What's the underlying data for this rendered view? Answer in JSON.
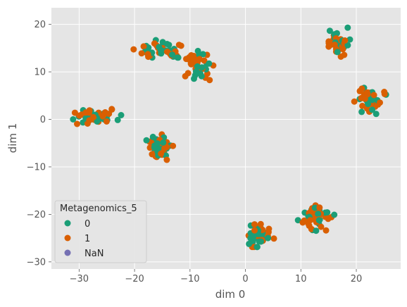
{
  "chart_data": {
    "type": "scatter",
    "title": "",
    "xlabel": "dim 0",
    "ylabel": "dim 1",
    "xlim": [
      -35,
      28
    ],
    "ylim": [
      -31.5,
      23.5
    ],
    "xticks": [
      -30,
      -20,
      -10,
      0,
      10,
      20
    ],
    "yticks": [
      -30,
      -20,
      -10,
      0,
      10,
      20
    ],
    "xtick_labels": [
      "−30",
      "−20",
      "−10",
      "0",
      "10",
      "20"
    ],
    "ytick_labels": [
      "−30",
      "−20",
      "−10",
      "0",
      "10",
      "20"
    ],
    "grid": true,
    "background": "#e5e5e5",
    "legend": {
      "title": "Metagenomics_5",
      "placement": "lower-left",
      "entries": [
        {
          "label": "0",
          "color": "#1b9e77"
        },
        {
          "label": "1",
          "color": "#d95f02"
        },
        {
          "label": "NaN",
          "color": "#7570b3"
        }
      ]
    },
    "clusters": [
      {
        "center": [
          -27,
          0.5
        ],
        "spread": [
          4.5,
          2.0
        ],
        "n": 48
      },
      {
        "center": [
          -16,
          14.5
        ],
        "spread": [
          4.0,
          2.0
        ],
        "n": 45
      },
      {
        "center": [
          -8.5,
          12
        ],
        "spread": [
          2.5,
          3.5
        ],
        "n": 40
      },
      {
        "center": [
          -15.5,
          -6
        ],
        "spread": [
          2.2,
          2.6
        ],
        "n": 52
      },
      {
        "center": [
          17,
          16
        ],
        "spread": [
          1.8,
          3.0
        ],
        "n": 38
      },
      {
        "center": [
          22.5,
          4
        ],
        "spread": [
          2.6,
          2.6
        ],
        "n": 48
      },
      {
        "center": [
          2.5,
          -24
        ],
        "spread": [
          2.4,
          2.6
        ],
        "n": 55
      },
      {
        "center": [
          13,
          -20.5
        ],
        "spread": [
          3.2,
          2.8
        ],
        "n": 55
      }
    ]
  }
}
